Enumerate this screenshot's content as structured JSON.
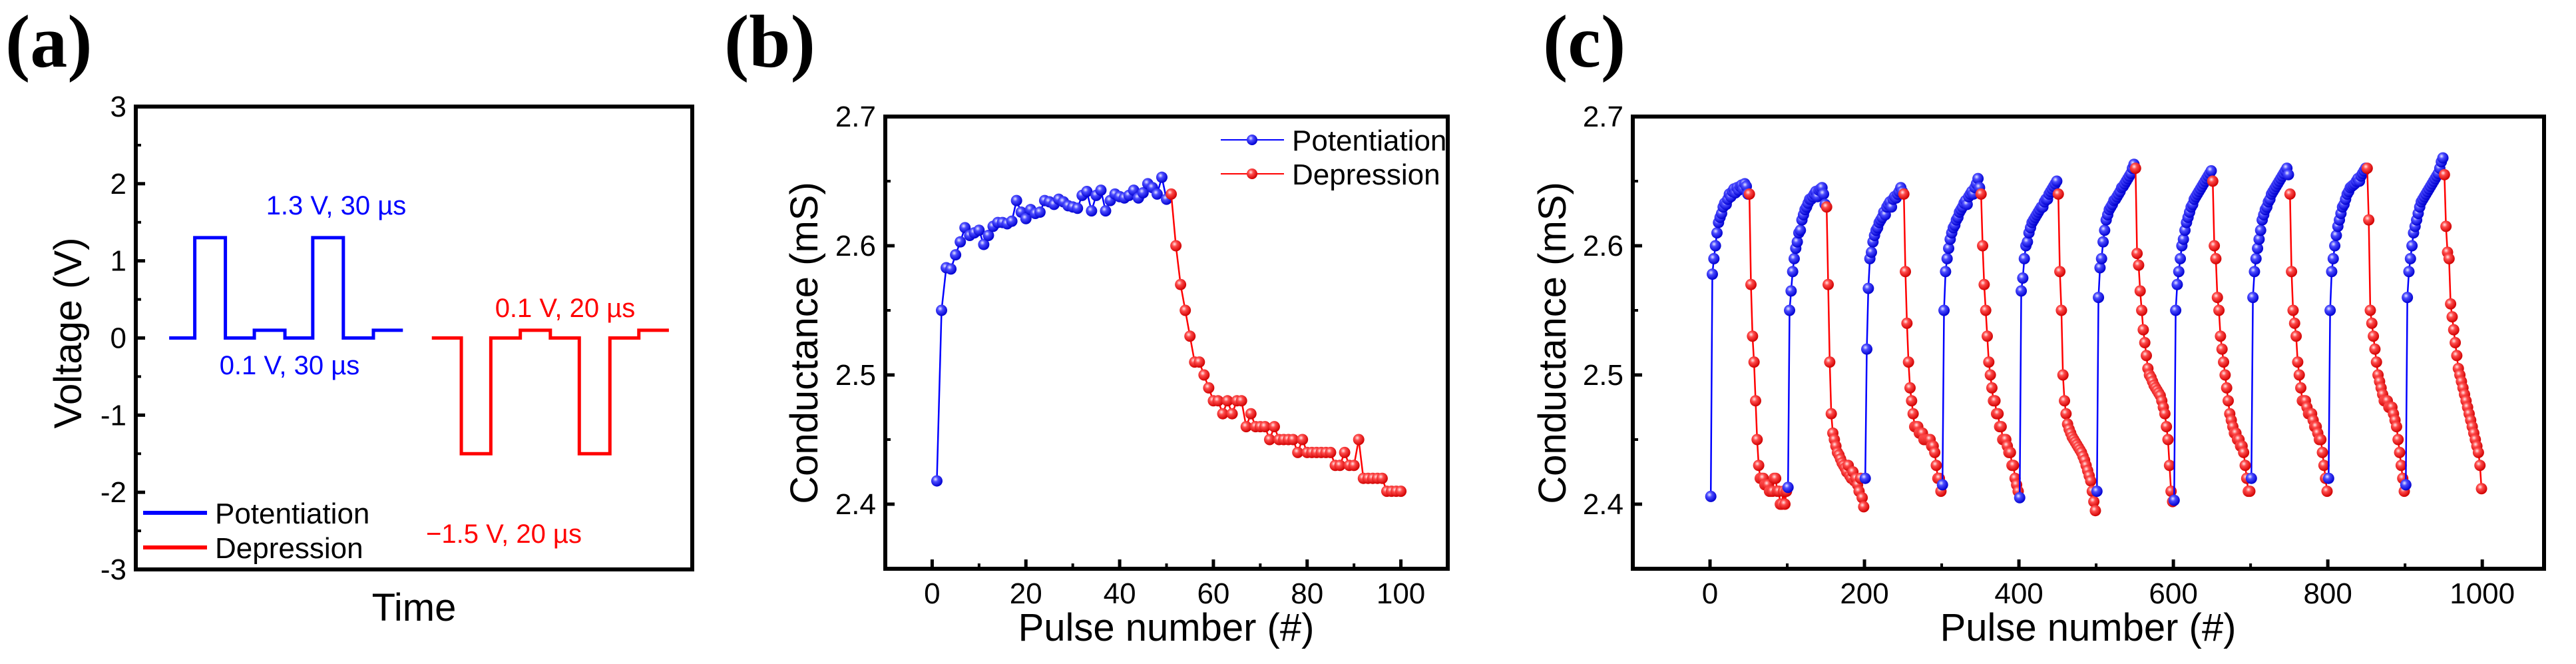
{
  "colors": {
    "potentiation": "#0000ff",
    "depression": "#ff0000"
  },
  "chart_data": [
    {
      "panel": "(a)",
      "type": "line",
      "xlabel": "Time",
      "ylabel": "Voltage (V)",
      "ylim": [
        -3,
        3
      ],
      "xlim": [
        0,
        100
      ],
      "yticks": [
        "3",
        "2",
        "1",
        "0",
        "-1",
        "-2",
        "-3"
      ],
      "legend": {
        "placement": "bottom-left",
        "entries": [
          "Potentiation",
          "Depression"
        ]
      },
      "series": [
        {
          "name": "Potentiation",
          "t": [
            6,
            10.6,
            10.6,
            16.1,
            16.1,
            21.3,
            21.3,
            26.8,
            26.8,
            31.8,
            31.8,
            37.3,
            37.3,
            42.7,
            42.7,
            48
          ],
          "v": [
            0,
            0,
            1.3,
            1.3,
            0,
            0,
            0.1,
            0.1,
            0,
            0,
            1.3,
            1.3,
            0,
            0,
            0.1,
            0.1
          ]
        },
        {
          "name": "Depression",
          "t": [
            53.2,
            58.5,
            58.5,
            63.8,
            63.8,
            69.1,
            69.1,
            74.5,
            74.5,
            79.7,
            79.7,
            85.2,
            85.2,
            90.4,
            90.4,
            95.8
          ],
          "v": [
            0,
            0,
            -1.5,
            -1.5,
            0,
            0,
            0.1,
            0.1,
            0,
            0,
            -1.5,
            -1.5,
            0,
            0,
            0.1,
            0.1
          ]
        }
      ],
      "annotations": [
        "1.3 V, 30 µs",
        "0.1 V, 30 µs",
        "0.1 V, 20 µs",
        "−1.5 V, 20 µs"
      ]
    },
    {
      "panel": "(b)",
      "type": "scatter-line",
      "xlabel": "Pulse number (#)",
      "ylabel": "Conductance (mS)",
      "xlim": [
        -10,
        110
      ],
      "ylim": [
        2.35,
        2.7
      ],
      "xticks": [
        "0",
        "20",
        "40",
        "60",
        "80",
        "100"
      ],
      "yticks": [
        "2.4",
        "2.5",
        "2.6",
        "2.7"
      ],
      "legend": {
        "placement": "top-right",
        "entries": [
          "Potentiation",
          "Depression"
        ]
      },
      "series": [
        {
          "name": "Potentiation",
          "x_start": 1,
          "values": [
            2.418,
            2.55,
            2.583,
            2.582,
            2.593,
            2.603,
            2.614,
            2.608,
            2.61,
            2.612,
            2.601,
            2.608,
            2.615,
            2.618,
            2.618,
            2.617,
            2.619,
            2.635,
            2.626,
            2.621,
            2.628,
            2.625,
            2.626,
            2.635,
            2.634,
            2.632,
            2.636,
            2.634,
            2.631,
            2.63,
            2.629,
            2.639,
            2.642,
            2.627,
            2.639,
            2.643,
            2.627,
            2.635,
            2.64,
            2.638,
            2.637,
            2.639,
            2.643,
            2.637,
            2.641,
            2.648,
            2.645,
            2.64,
            2.653,
            2.636
          ]
        },
        {
          "name": "Depression",
          "x_start": 51,
          "values": [
            2.64,
            2.6,
            2.57,
            2.55,
            2.53,
            2.51,
            2.51,
            2.5,
            2.49,
            2.48,
            2.48,
            2.47,
            2.48,
            2.47,
            2.48,
            2.48,
            2.46,
            2.47,
            2.46,
            2.46,
            2.46,
            2.45,
            2.46,
            2.45,
            2.45,
            2.45,
            2.45,
            2.44,
            2.45,
            2.44,
            2.44,
            2.44,
            2.44,
            2.44,
            2.44,
            2.43,
            2.43,
            2.44,
            2.43,
            2.43,
            2.45,
            2.42,
            2.42,
            2.42,
            2.42,
            2.42,
            2.41,
            2.41,
            2.41,
            2.41
          ]
        }
      ]
    },
    {
      "panel": "(c)",
      "type": "scatter-line",
      "xlabel": "Pulse number (#)",
      "ylabel": "Conductance (mS)",
      "xlim": [
        -100,
        1080
      ],
      "ylim": [
        2.35,
        2.7
      ],
      "xticks": [
        "0",
        "200",
        "400",
        "600",
        "800",
        "1000"
      ],
      "yticks": [
        "2.4",
        "2.5",
        "2.6",
        "2.7"
      ],
      "pulses_per_cycle": 100,
      "x_step": 2,
      "cycles": [
        {
          "start": 0,
          "potentiation": [
            2.406,
            2.578,
            2.59,
            2.6,
            2.61,
            2.618,
            2.622,
            2.625,
            2.63,
            2.633,
            2.632,
            2.636,
            2.64,
            2.638,
            2.642,
            2.644,
            2.641,
            2.645,
            2.643,
            2.646,
            2.647,
            2.644,
            2.648,
            2.646,
            2.64
          ],
          "depression": [
            2.64,
            2.57,
            2.53,
            2.51,
            2.48,
            2.45,
            2.43,
            2.42,
            2.42,
            2.42,
            2.415,
            2.415,
            2.415,
            2.41,
            2.41,
            2.41,
            2.42,
            2.42,
            2.41,
            2.41,
            2.4,
            2.4,
            2.41,
            2.4,
            2.41
          ]
        },
        {
          "start": 100,
          "potentiation": [
            2.413,
            2.55,
            2.565,
            2.58,
            2.59,
            2.598,
            2.603,
            2.61,
            2.612,
            2.62,
            2.624,
            2.628,
            2.63,
            2.633,
            2.636,
            2.636,
            2.638,
            2.64,
            2.642,
            2.638,
            2.643,
            2.644,
            2.645,
            2.64,
            2.632
          ],
          "depression": [
            2.63,
            2.57,
            2.51,
            2.47,
            2.455,
            2.45,
            2.445,
            2.44,
            2.438,
            2.435,
            2.432,
            2.43,
            2.428,
            2.425,
            2.43,
            2.422,
            2.42,
            2.425,
            2.418,
            2.42,
            2.415,
            2.41,
            2.42,
            2.405,
            2.398
          ]
        },
        {
          "start": 200,
          "potentiation": [
            2.42,
            2.52,
            2.567,
            2.59,
            2.595,
            2.603,
            2.608,
            2.612,
            2.614,
            2.618,
            2.62,
            2.622,
            2.626,
            2.624,
            2.63,
            2.632,
            2.634,
            2.63,
            2.636,
            2.638,
            2.637,
            2.64,
            2.642,
            2.645,
            2.642
          ],
          "depression": [
            2.64,
            2.58,
            2.54,
            2.51,
            2.49,
            2.48,
            2.47,
            2.46,
            2.46,
            2.46,
            2.455,
            2.455,
            2.455,
            2.45,
            2.45,
            2.45,
            2.45,
            2.45,
            2.445,
            2.445,
            2.44,
            2.43,
            2.42,
            2.42,
            2.41
          ]
        },
        {
          "start": 300,
          "potentiation": [
            2.415,
            2.55,
            2.58,
            2.59,
            2.598,
            2.605,
            2.61,
            2.614,
            2.616,
            2.62,
            2.622,
            2.626,
            2.628,
            2.63,
            2.633,
            2.635,
            2.632,
            2.638,
            2.64,
            2.642,
            2.64,
            2.645,
            2.648,
            2.652,
            2.645
          ],
          "depression": [
            2.64,
            2.6,
            2.57,
            2.55,
            2.53,
            2.51,
            2.5,
            2.49,
            2.48,
            2.48,
            2.47,
            2.47,
            2.46,
            2.46,
            2.45,
            2.45,
            2.45,
            2.445,
            2.44,
            2.44,
            2.43,
            2.43,
            2.42,
            2.415,
            2.41
          ]
        },
        {
          "start": 400,
          "potentiation": [
            2.405,
            2.565,
            2.575,
            2.59,
            2.6,
            2.603,
            2.61,
            2.614,
            2.618,
            2.62,
            2.622,
            2.624,
            2.626,
            2.628,
            2.63,
            2.63,
            2.634,
            2.636,
            2.636,
            2.64,
            2.642,
            2.644,
            2.646,
            2.648,
            2.65
          ],
          "depression": [
            2.64,
            2.58,
            2.55,
            2.5,
            2.48,
            2.47,
            2.462,
            2.458,
            2.455,
            2.452,
            2.45,
            2.448,
            2.446,
            2.444,
            2.442,
            2.44,
            2.437,
            2.434,
            2.43,
            2.426,
            2.422,
            2.418,
            2.41,
            2.402,
            2.395
          ]
        },
        {
          "start": 500,
          "potentiation": [
            2.41,
            2.56,
            2.583,
            2.59,
            2.603,
            2.612,
            2.62,
            2.624,
            2.628,
            2.63,
            2.632,
            2.635,
            2.636,
            2.638,
            2.64,
            2.642,
            2.645,
            2.646,
            2.648,
            2.65,
            2.652,
            2.654,
            2.656,
            2.66,
            2.663
          ],
          "depression": [
            2.66,
            2.594,
            2.585,
            2.565,
            2.55,
            2.535,
            2.525,
            2.515,
            2.505,
            2.5,
            2.498,
            2.495,
            2.492,
            2.49,
            2.488,
            2.486,
            2.484,
            2.48,
            2.475,
            2.47,
            2.46,
            2.45,
            2.43,
            2.41,
            2.402
          ]
        },
        {
          "start": 600,
          "potentiation": [
            2.403,
            2.55,
            2.57,
            2.58,
            2.59,
            2.6,
            2.605,
            2.612,
            2.618,
            2.622,
            2.626,
            2.63,
            2.632,
            2.636,
            2.638,
            2.64,
            2.642,
            2.644,
            2.646,
            2.648,
            2.65,
            2.652,
            2.654,
            2.656,
            2.658
          ],
          "depression": [
            2.65,
            2.6,
            2.59,
            2.56,
            2.55,
            2.53,
            2.52,
            2.51,
            2.5,
            2.49,
            2.48,
            2.47,
            2.465,
            2.46,
            2.455,
            2.455,
            2.45,
            2.45,
            2.445,
            2.445,
            2.44,
            2.43,
            2.42,
            2.41,
            2.41
          ]
        },
        {
          "start": 700,
          "potentiation": [
            2.42,
            2.56,
            2.58,
            2.59,
            2.598,
            2.605,
            2.612,
            2.62,
            2.624,
            2.628,
            2.63,
            2.634,
            2.636,
            2.64,
            2.642,
            2.644,
            2.646,
            2.648,
            2.65,
            2.652,
            2.654,
            2.656,
            2.658,
            2.66,
            2.655
          ],
          "depression": [
            2.64,
            2.58,
            2.55,
            2.54,
            2.53,
            2.51,
            2.5,
            2.49,
            2.48,
            2.48,
            2.48,
            2.475,
            2.47,
            2.47,
            2.47,
            2.465,
            2.46,
            2.46,
            2.455,
            2.45,
            2.45,
            2.44,
            2.43,
            2.42,
            2.41
          ]
        },
        {
          "start": 800,
          "potentiation": [
            2.42,
            2.55,
            2.58,
            2.59,
            2.6,
            2.608,
            2.615,
            2.62,
            2.625,
            2.63,
            2.632,
            2.636,
            2.64,
            2.642,
            2.645,
            2.646,
            2.647,
            2.648,
            2.65,
            2.652,
            2.65,
            2.654,
            2.656,
            2.658,
            2.66
          ],
          "depression": [
            2.66,
            2.62,
            2.55,
            2.54,
            2.53,
            2.52,
            2.51,
            2.5,
            2.495,
            2.49,
            2.485,
            2.48,
            2.48,
            2.48,
            2.475,
            2.475,
            2.475,
            2.47,
            2.465,
            2.46,
            2.45,
            2.44,
            2.43,
            2.42,
            2.41
          ]
        },
        {
          "start": 900,
          "potentiation": [
            2.415,
            2.56,
            2.58,
            2.59,
            2.6,
            2.61,
            2.615,
            2.62,
            2.625,
            2.63,
            2.634,
            2.636,
            2.638,
            2.64,
            2.642,
            2.644,
            2.646,
            2.648,
            2.65,
            2.652,
            2.654,
            2.656,
            2.66,
            2.665,
            2.668
          ],
          "depression": [
            2.655,
            2.615,
            2.595,
            2.59,
            2.555,
            2.545,
            2.535,
            2.525,
            2.515,
            2.505,
            2.5,
            2.495,
            2.49,
            2.485,
            2.48,
            2.475,
            2.47,
            2.465,
            2.46,
            2.455,
            2.45,
            2.445,
            2.44,
            2.43,
            2.412
          ]
        }
      ]
    }
  ]
}
